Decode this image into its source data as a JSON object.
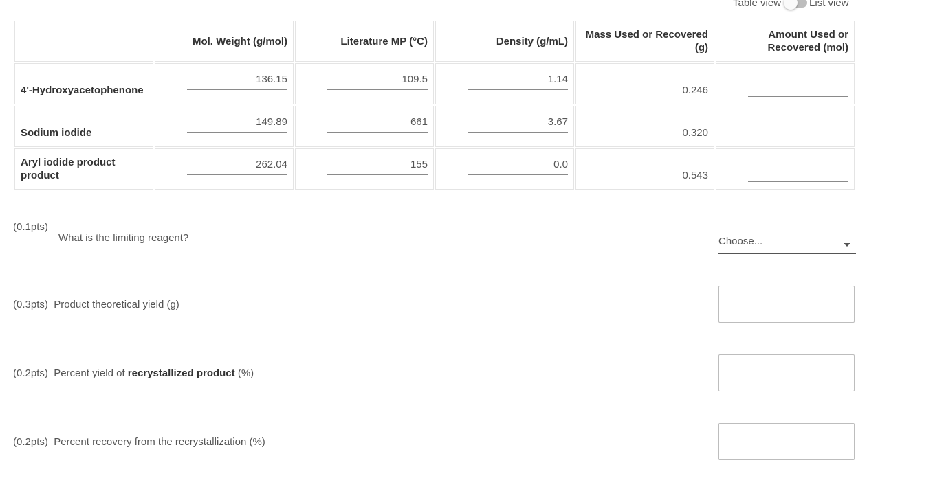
{
  "toggle": {
    "left_label": "Table view",
    "right_label": "List view"
  },
  "table": {
    "headers": [
      "",
      "Mol. Weight (g/mol)",
      "Literature MP (°C)",
      "Density (g/mL)",
      "Mass Used or Recovered (g)",
      "Amount Used or Recovered (mol)"
    ],
    "rows": [
      {
        "name": "4'-Hydroxyacetophenone",
        "mol_weight": "136.15",
        "mp": "109.5",
        "density": "1.14",
        "mass": "0.246",
        "amount": ""
      },
      {
        "name": "Sodium iodide",
        "mol_weight": "149.89",
        "mp": "661",
        "density": "3.67",
        "mass": "0.320",
        "amount": ""
      },
      {
        "name": "Aryl iodide product product",
        "mol_weight": "262.04",
        "mp": "155",
        "density": "0.0",
        "mass": "0.543",
        "amount": ""
      }
    ]
  },
  "questions": {
    "q1": {
      "pts": "(0.1pts)",
      "text": "What is the limiting reagent?",
      "select_value": "Choose..."
    },
    "q2": {
      "pts": "(0.3pts)",
      "text": "Product theoretical yield (g)"
    },
    "q3": {
      "pts": "(0.2pts)",
      "text_before": "Percent yield of ",
      "text_bold": "recrystallized product",
      "text_after": " (%)"
    },
    "q4": {
      "pts": "(0.2pts)",
      "text": "Percent recovery from the recrystallization (%)"
    }
  }
}
